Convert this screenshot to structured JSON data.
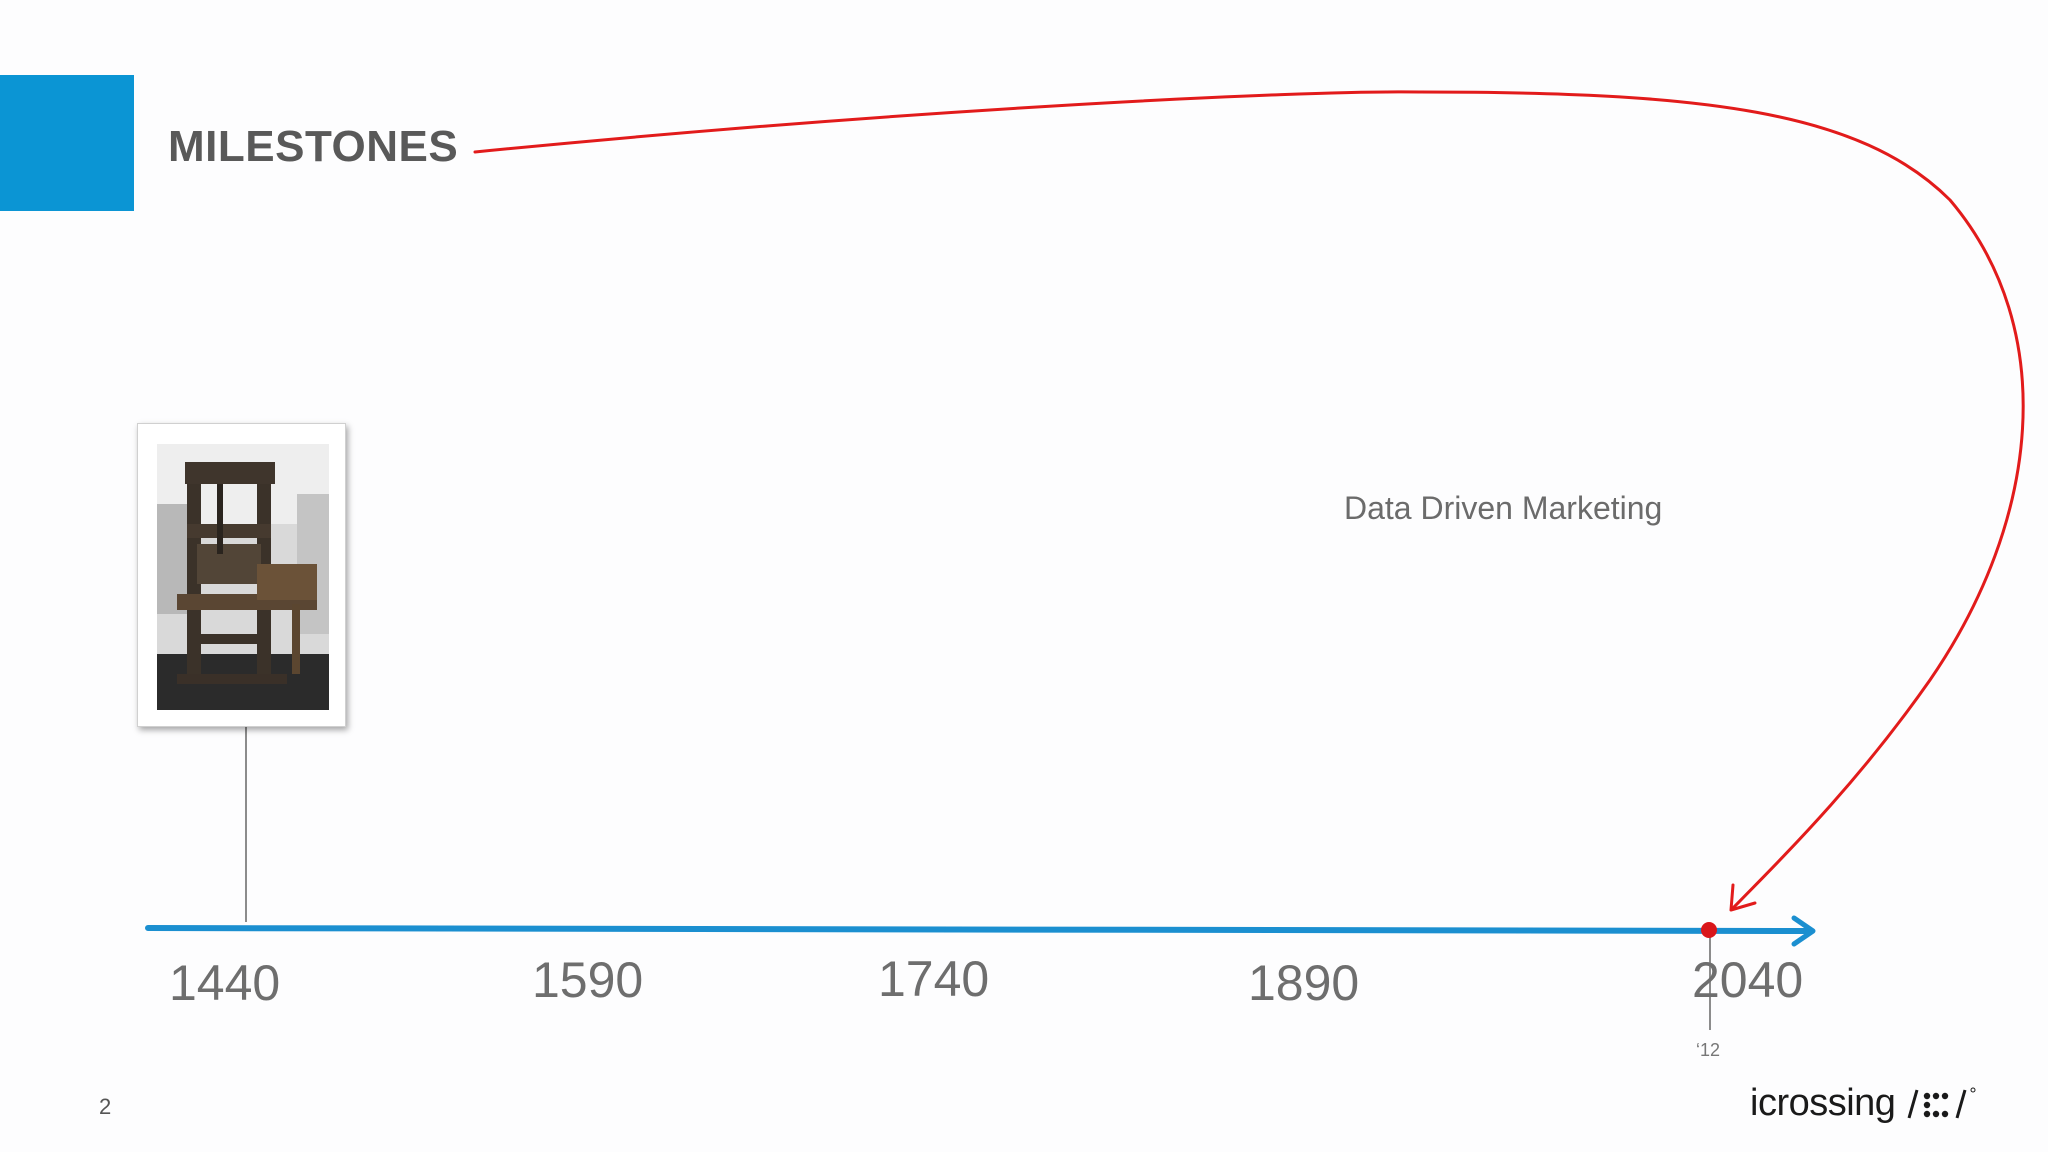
{
  "slide": {
    "title": "MILESTONES",
    "caption": "Data Driven Marketing",
    "page_number": "2",
    "accent_color": "#0b95d4",
    "arrow_color": "#e21b1b"
  },
  "timeline": {
    "years": [
      "1440",
      "1590",
      "1740",
      "1890",
      "2040"
    ],
    "marker_label": "‘12",
    "line_color": "#1b8fd0"
  },
  "milestone": {
    "image": "printing-press-photo"
  },
  "logo": {
    "text": "icrossing"
  }
}
